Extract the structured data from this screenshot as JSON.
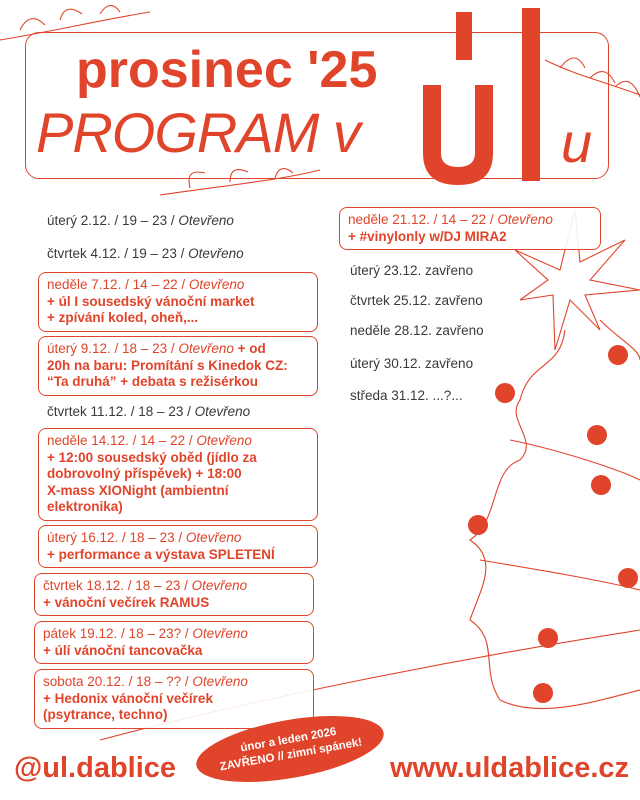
{
  "header": {
    "title": "prosinec '25",
    "subtitle": "PROGRAM v",
    "logo_text": "úl",
    "suffix": "u"
  },
  "left": [
    {
      "date": "úterý 2.12. / 19 – 23 / ",
      "status": "Otevřeno"
    },
    {
      "date": "čtvrtek 4.12. / 19 – 23 / ",
      "status": "Otevřeno"
    },
    {
      "date": "neděle 7.12. / 14 – 22 / ",
      "status": "Otevřeno",
      "lines": [
        "+ úl I sousedský vánoční market",
        "+ zpívání koled, oheň,..."
      ]
    },
    {
      "date": "úterý 9.12. / 18 – 23 / ",
      "status": "Otevřeno",
      "after": " + od",
      "lines": [
        "20h na baru: Promítání s Kinedok CZ:",
        "“Ta druhá” + debata s režisérkou"
      ]
    },
    {
      "date": "čtvrtek 11.12. / 18 – 23 / ",
      "status": "Otevřeno"
    },
    {
      "date": "neděle 14.12. / 14 – 22 / ",
      "status": "Otevřeno",
      "lines": [
        "+ 12:00 sousedský oběd (jídlo za",
        "dobrovolný příspěvek) + 18:00",
        "X-mass XIONight (ambientní",
        "elektronika)"
      ]
    },
    {
      "date": "úterý 16.12.  / 18 – 23 / ",
      "status": "Otevřeno",
      "lines": [
        "+ performance a výstava SPLETENÍ"
      ]
    },
    {
      "date": "čtvrtek 18.12. / 18 – 23 / ",
      "status": "Otevřeno",
      "lines": [
        "+ vánoční večírek RAMUS"
      ]
    },
    {
      "date": "pátek 19.12. / 18 – 23? / ",
      "status": "Otevřeno",
      "lines": [
        "+ úlí vánoční tancovačka"
      ]
    },
    {
      "date": "sobota 20.12. / 18 – ?? / ",
      "status": "Otevřeno",
      "lines": [
        "+ Hedonix vánoční večírek",
        "(psytrance, techno)"
      ]
    }
  ],
  "right": [
    {
      "date": "neděle 21.12. / 14 – 22 / ",
      "status": "Otevřeno",
      "lines": [
        "+ #vinylonly w/DJ MIRA2"
      ]
    },
    {
      "date": "úterý 23.12. zavřeno"
    },
    {
      "date": "čtvrtek 25.12. zavřeno"
    },
    {
      "date": "neděle 28.12. zavřeno"
    },
    {
      "date": "úterý 30.12.  zavřeno"
    },
    {
      "date": "středa 31.12.  ...?..."
    }
  ],
  "notice": {
    "line1": "únor a leden 2026",
    "line2": "ZAVŘENO // zimní spánek!"
  },
  "footer": {
    "instagram": "@ul.dablice",
    "website": "www.uldablice.cz"
  },
  "colors": {
    "accent": "#e0442a",
    "text": "#3a3a3a"
  }
}
